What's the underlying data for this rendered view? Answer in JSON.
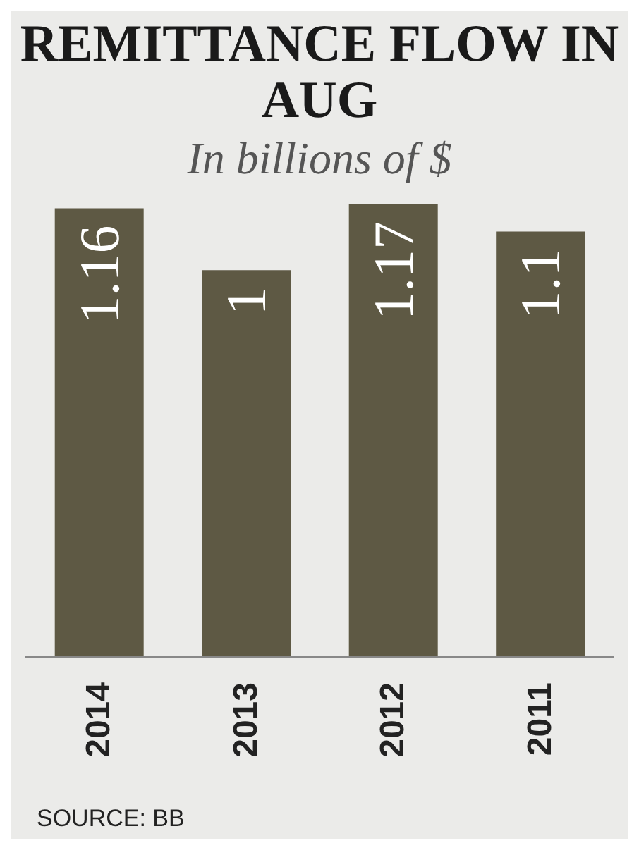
{
  "chart_data": {
    "type": "bar",
    "title": "REMITTANCE FLOW IN AUG",
    "subtitle": "In billions of $",
    "categories": [
      "2014",
      "2013",
      "2012",
      "2011"
    ],
    "values": [
      1.16,
      1,
      1.17,
      1.1
    ],
    "color": "#5e5944",
    "data_labels": true,
    "tick_labels": "x",
    "annotations": [
      "SOURCE: BB"
    ]
  }
}
